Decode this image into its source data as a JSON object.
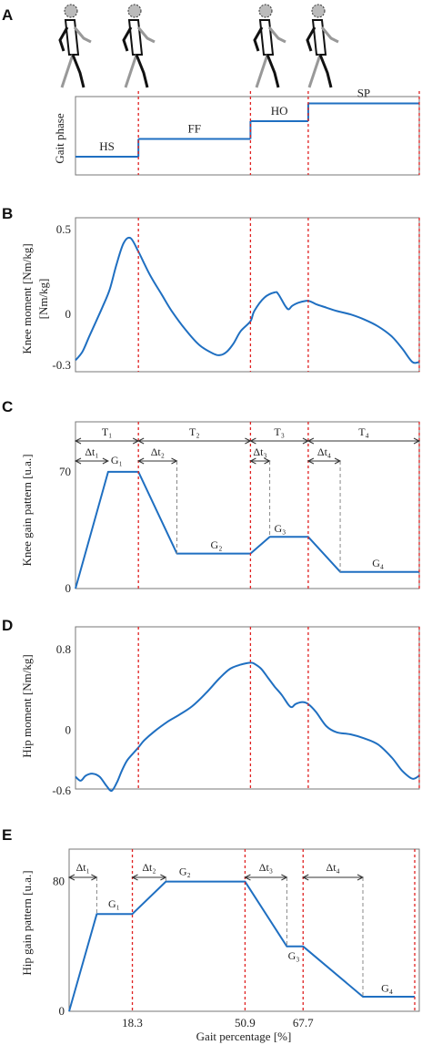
{
  "figure": {
    "panel_letters": [
      "A",
      "B",
      "C",
      "D",
      "E"
    ],
    "x_axis_label": "Gait percentage [%]",
    "x_ticks": [
      "18.3",
      "50.9",
      "67.7"
    ]
  },
  "colors": {
    "curve": "#1f6fc1",
    "event_line": "#e02020",
    "dash": "#888888"
  },
  "icons": [
    "walking-figure-icon",
    "walking-figure-icon",
    "walking-figure-icon",
    "walking-figure-icon"
  ],
  "chart_data": [
    {
      "type": "line",
      "panel": "A",
      "ylabel": "Gait phase",
      "phases": [
        "HS",
        "FF",
        "HO",
        "SP"
      ],
      "x_boundaries": [
        0,
        18.3,
        50.9,
        67.7,
        100
      ],
      "levels": [
        1,
        2,
        3,
        4
      ]
    },
    {
      "type": "line",
      "panel": "B",
      "ylabel": "Knee moment [Nm/kg]",
      "ylim": [
        -0.3,
        0.5
      ],
      "yticks": [
        "0.5",
        "0",
        "-0.3"
      ],
      "series": [
        {
          "x": [
            0,
            2,
            4,
            6,
            8,
            10,
            12,
            14,
            16,
            18.3,
            20,
            22,
            25,
            28,
            32,
            36,
            40,
            42,
            44,
            46,
            48,
            50.9,
            52,
            55,
            58,
            59,
            61,
            62,
            63,
            65,
            67.7,
            70,
            73,
            76,
            80,
            84,
            88,
            92,
            95,
            98,
            100
          ],
          "y": [
            -0.27,
            -0.22,
            -0.13,
            -0.04,
            0.05,
            0.15,
            0.3,
            0.42,
            0.45,
            0.37,
            0.3,
            0.22,
            0.12,
            0.02,
            -0.09,
            -0.18,
            -0.23,
            -0.24,
            -0.22,
            -0.17,
            -0.1,
            -0.04,
            0.02,
            0.1,
            0.13,
            0.12,
            0.05,
            0.03,
            0.05,
            0.07,
            0.08,
            0.06,
            0.04,
            0.02,
            0.0,
            -0.03,
            -0.07,
            -0.13,
            -0.2,
            -0.28,
            -0.28
          ]
        }
      ]
    },
    {
      "type": "line",
      "panel": "C",
      "ylabel": "Knee gain pattern [u.a.]",
      "ylim": [
        0,
        100
      ],
      "yticks": [
        "70",
        "0"
      ],
      "intervals": [
        "T₁",
        "T₂",
        "T₃",
        "T₄"
      ],
      "deltas": [
        "Δt₁",
        "Δt₂",
        "Δt₃",
        "Δt₄"
      ],
      "gains": [
        "G₁",
        "G₂",
        "G₃",
        "G₄"
      ],
      "series": [
        {
          "x": [
            0,
            9.5,
            18.3,
            29.5,
            50.9,
            56.5,
            67.7,
            77,
            100
          ],
          "y": [
            0,
            70,
            70,
            21,
            21,
            31,
            31,
            10,
            10
          ]
        }
      ]
    },
    {
      "type": "line",
      "panel": "D",
      "ylabel": "Hip moment [Nm/kg]",
      "ylim": [
        -0.6,
        0.8
      ],
      "yticks": [
        "0.8",
        "0",
        "-0.6"
      ],
      "series": [
        {
          "x": [
            0,
            1.5,
            3,
            5,
            7,
            9,
            10.5,
            12,
            13.5,
            15,
            17,
            18.3,
            20,
            23,
            27,
            30,
            34,
            38,
            42,
            45,
            48,
            50.9,
            52,
            54,
            56,
            58,
            60,
            62,
            63,
            64,
            66,
            67.7,
            70,
            73,
            76,
            80,
            84,
            88,
            92,
            95,
            98,
            100
          ],
          "y": [
            -0.46,
            -0.5,
            -0.45,
            -0.43,
            -0.46,
            -0.55,
            -0.6,
            -0.52,
            -0.4,
            -0.3,
            -0.22,
            -0.17,
            -0.1,
            -0.01,
            0.09,
            0.15,
            0.24,
            0.37,
            0.52,
            0.61,
            0.65,
            0.67,
            0.66,
            0.61,
            0.52,
            0.43,
            0.35,
            0.25,
            0.23,
            0.26,
            0.28,
            0.26,
            0.18,
            0.04,
            -0.02,
            -0.04,
            -0.08,
            -0.14,
            -0.27,
            -0.4,
            -0.48,
            -0.45
          ]
        }
      ]
    },
    {
      "type": "line",
      "panel": "E",
      "ylabel": "Hip gain pattern [u.a.]",
      "ylim": [
        0,
        100
      ],
      "yticks": [
        "80",
        "0"
      ],
      "deltas": [
        "Δt₁",
        "Δt₂",
        "Δt₃",
        "Δt₄"
      ],
      "gains": [
        "G₁",
        "G₂",
        "G₃",
        "G₄"
      ],
      "series": [
        {
          "x": [
            0,
            8,
            18.3,
            28,
            50.9,
            63,
            67.7,
            85,
            100
          ],
          "y": [
            0,
            60,
            60,
            80,
            80,
            40,
            40,
            9,
            9
          ]
        }
      ]
    }
  ]
}
